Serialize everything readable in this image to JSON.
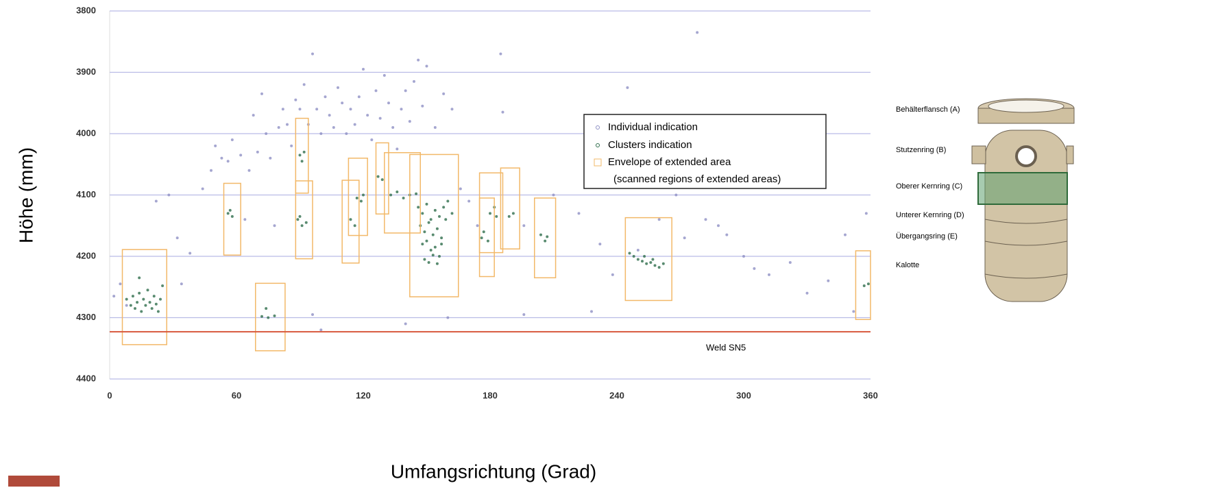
{
  "chart_data": {
    "type": "scatter",
    "x_label": "Umfangsrichtung (Grad)",
    "y_label": "Höhe (mm)",
    "xlim": [
      0,
      360
    ],
    "xticks": [
      0,
      60,
      120,
      180,
      240,
      300,
      360
    ],
    "ylim": [
      3800,
      4400
    ],
    "yticks": [
      3800,
      3900,
      4000,
      4100,
      4200,
      4300,
      4400
    ],
    "y_inverted": true,
    "grid": true,
    "series": [
      {
        "name": "Individual indication",
        "color": "#8e90c4",
        "x": [
          2,
          5,
          22,
          28,
          32,
          38,
          44,
          48,
          50,
          53,
          56,
          58,
          62,
          64,
          66,
          68,
          70,
          72,
          74,
          76,
          78,
          80,
          82,
          84,
          86,
          88,
          90,
          92,
          94,
          96,
          98,
          100,
          102,
          104,
          106,
          108,
          110,
          112,
          114,
          116,
          118,
          120,
          122,
          124,
          126,
          128,
          130,
          132,
          134,
          136,
          138,
          140,
          142,
          144,
          146,
          148,
          150,
          154,
          158,
          162,
          166,
          170,
          174,
          185,
          186,
          196,
          210,
          222,
          232,
          238,
          245,
          250,
          260,
          268,
          272,
          278,
          282,
          288,
          292,
          300,
          305,
          312,
          322,
          330,
          340,
          348,
          352,
          358,
          34,
          8,
          96,
          100,
          140,
          160,
          196,
          228
        ],
        "values": [
          4265,
          4245,
          4110,
          4100,
          4170,
          4195,
          4090,
          4060,
          4020,
          4040,
          4045,
          4010,
          4035,
          4140,
          4060,
          3970,
          4030,
          3935,
          4000,
          4040,
          4150,
          3990,
          3960,
          3985,
          4020,
          3945,
          3960,
          3920,
          3985,
          3870,
          3960,
          4000,
          3940,
          3970,
          3990,
          3925,
          3950,
          4000,
          3960,
          3985,
          3940,
          3895,
          3970,
          4010,
          3930,
          3975,
          3905,
          3950,
          3990,
          4025,
          3960,
          3930,
          3980,
          3915,
          3880,
          3955,
          3890,
          3990,
          3935,
          3960,
          4090,
          4110,
          4150,
          3870,
          3965,
          4150,
          4100,
          4130,
          4180,
          4230,
          3925,
          4190,
          4140,
          4100,
          4170,
          3835,
          4140,
          4150,
          4165,
          4200,
          4220,
          4230,
          4210,
          4260,
          4240,
          4165,
          4290,
          4130,
          4245,
          4280,
          4295,
          4320,
          4310,
          4300,
          4295,
          4290
        ]
      },
      {
        "name": "Clusters indication",
        "color": "#2f6e4c",
        "x": [
          8,
          10,
          11,
          12,
          13,
          14,
          15,
          16,
          17,
          18,
          19,
          20,
          21,
          22,
          23,
          24,
          14,
          25,
          56,
          58,
          57,
          72,
          75,
          78,
          74,
          90,
          91,
          92,
          89,
          91,
          93,
          90,
          114,
          116,
          117,
          119,
          120,
          127,
          129,
          133,
          136,
          139,
          142,
          145,
          146,
          148,
          150,
          152,
          154,
          156,
          158,
          147,
          149,
          151,
          153,
          155,
          157,
          148,
          150,
          152,
          154,
          156,
          149,
          151,
          153,
          155,
          157,
          159,
          160,
          162,
          176,
          177,
          179,
          180,
          182,
          183,
          189,
          191,
          204,
          206,
          207,
          248,
          250,
          252,
          254,
          256,
          258,
          260,
          262,
          246,
          253,
          257,
          357,
          359
        ],
        "values": [
          4270,
          4280,
          4265,
          4285,
          4275,
          4260,
          4290,
          4270,
          4280,
          4255,
          4275,
          4285,
          4265,
          4278,
          4290,
          4270,
          4235,
          4248,
          4130,
          4135,
          4125,
          4298,
          4300,
          4297,
          4285,
          4035,
          4045,
          4030,
          4140,
          4150,
          4145,
          4135,
          4140,
          4150,
          4105,
          4110,
          4100,
          4070,
          4075,
          4100,
          4095,
          4105,
          4100,
          4098,
          4120,
          4130,
          4115,
          4140,
          4125,
          4135,
          4120,
          4150,
          4160,
          4145,
          4165,
          4155,
          4170,
          4180,
          4175,
          4190,
          4185,
          4200,
          4205,
          4210,
          4198,
          4212,
          4180,
          4140,
          4110,
          4130,
          4170,
          4160,
          4175,
          4130,
          4120,
          4135,
          4135,
          4130,
          4165,
          4175,
          4168,
          4200,
          4205,
          4208,
          4212,
          4210,
          4215,
          4218,
          4212,
          4195,
          4200,
          4205,
          4248,
          4245
        ]
      }
    ],
    "envelopes": {
      "name": "Envelope of extended area",
      "note": "(scanned regions of extended areas)",
      "color": "#f2b868",
      "x0": [
        6,
        54,
        69,
        88,
        88,
        110,
        113,
        126,
        130,
        142,
        175,
        175,
        185,
        201,
        244,
        353
      ],
      "x1": [
        27,
        62,
        83,
        94,
        96,
        118,
        122,
        132,
        147,
        165,
        182,
        186,
        194,
        211,
        266,
        360
      ],
      "y0": [
        4189,
        4081,
        4244,
        3975,
        4077,
        4076,
        4040,
        4015,
        4031,
        4034,
        4105,
        4064,
        4056,
        4105,
        4137,
        4191
      ],
      "y1": [
        4344,
        4198,
        4354,
        4097,
        4204,
        4211,
        4166,
        4131,
        4162,
        4266,
        4233,
        4194,
        4188,
        4235,
        4272,
        4303
      ]
    },
    "reference_line": {
      "value": 4323,
      "label": "Weld SN5",
      "color": "#d8583c"
    }
  },
  "diagram": {
    "labels": [
      "Behälterflansch (A)",
      "Stutzenring (B)",
      "Oberer Kernring (C)",
      "Unterer Kernring (D)",
      "Übergangsring (E)",
      "Kalotte"
    ]
  }
}
